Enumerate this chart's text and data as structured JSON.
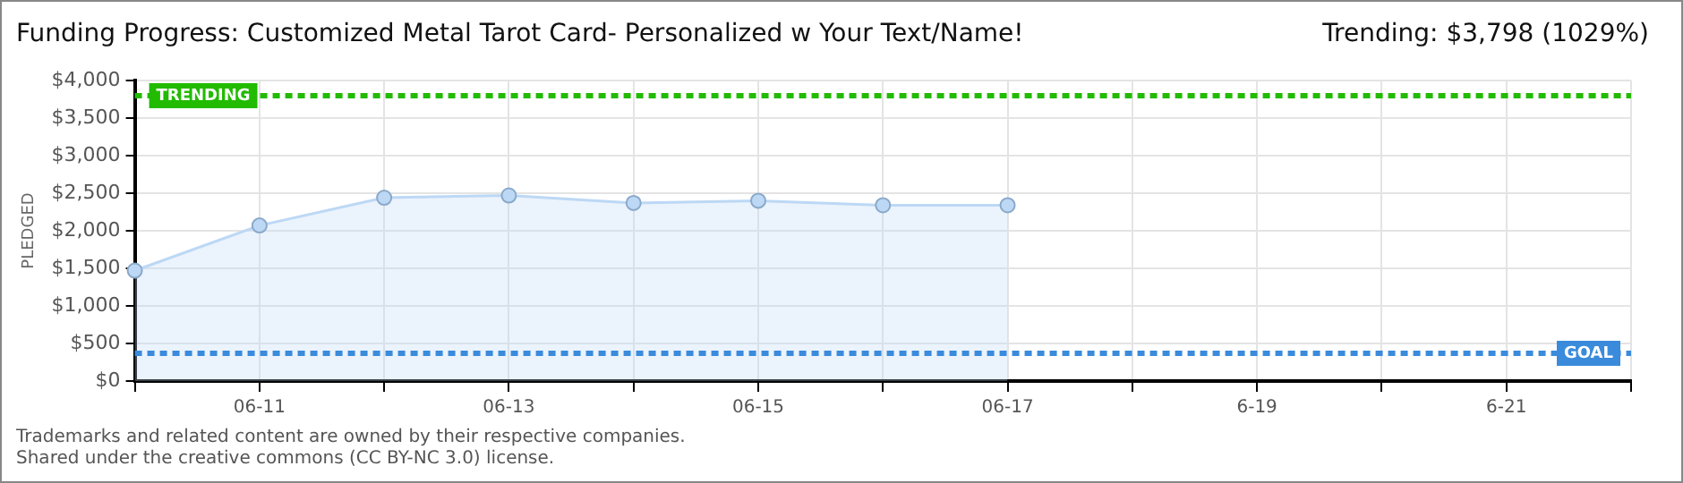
{
  "chart_data": {
    "type": "area",
    "title": "Funding Progress: Customized Metal Tarot Card- Personalized w Your Text/Name!",
    "subtitle": "Trending: $3,798 (1029%)",
    "ylabel": "PLEDGED",
    "categories": [
      null,
      "06-11",
      null,
      "06-13",
      null,
      "06-15",
      null,
      "06-17",
      null,
      "6-19",
      null,
      "6-21",
      null
    ],
    "series": [
      {
        "color": "#bcd8f5",
        "values": [
          1470,
          2070,
          2440,
          2470,
          2370,
          2400,
          2340,
          2340,
          null,
          null,
          null,
          null,
          null
        ]
      }
    ],
    "ylim": [
      0,
      4000
    ],
    "yticks": [
      {
        "value": 0,
        "label": "$0"
      },
      {
        "value": 500,
        "label": "$500"
      },
      {
        "value": 1000,
        "label": "$1,000"
      },
      {
        "value": 1500,
        "label": "$1,500"
      },
      {
        "value": 2000,
        "label": "$2,000"
      },
      {
        "value": 2500,
        "label": "$2,500"
      },
      {
        "value": 3000,
        "label": "$3,000"
      },
      {
        "value": 3500,
        "label": "$3,500"
      },
      {
        "value": 4000,
        "label": "$4,000"
      }
    ],
    "ref_lines": [
      {
        "axis": "y",
        "value": 3798,
        "label": "TRENDING",
        "color": "#22bb00",
        "line_style": "dashed"
      },
      {
        "axis": "y",
        "value": 370,
        "label": "GOAL",
        "color": "#3a8bdc",
        "line_style": "dashed"
      }
    ],
    "annotations": [
      "Trademarks and related content are owned by their respective companies.",
      "Shared under the creative commons (CC BY-NC 3.0) license."
    ],
    "grid": true,
    "marker": "circle",
    "legend": false
  }
}
